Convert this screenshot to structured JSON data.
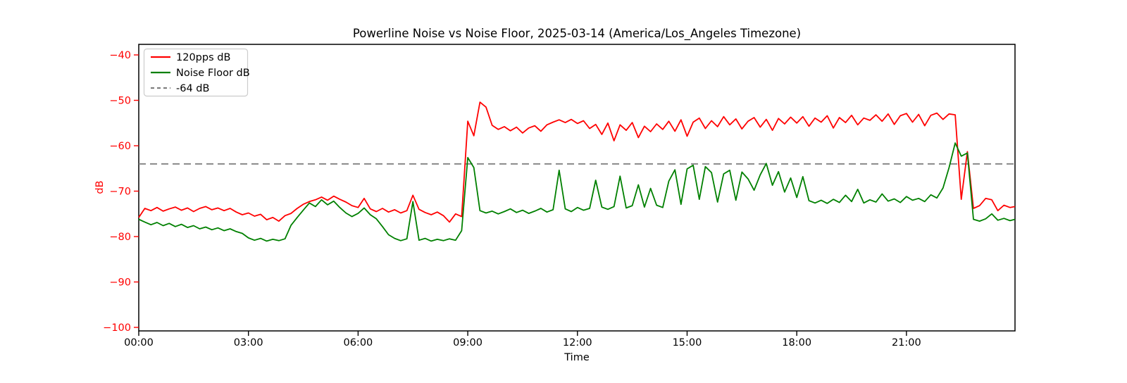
{
  "chart_data": {
    "type": "line",
    "title": "Powerline Noise vs Noise Floor, 2025-03-14 (America/Los_Angeles Timezone)",
    "xlabel": "Time",
    "ylabel": "dB",
    "y_axis_color": "#ff0000",
    "x_axis_color": "#000000",
    "ylim": [
      -100,
      -40
    ],
    "xlim_hours": [
      0,
      23.97
    ],
    "grid": false,
    "legend_position": "upper-left",
    "yticks": [
      {
        "value": -40,
        "label": "−40"
      },
      {
        "value": -50,
        "label": "−50"
      },
      {
        "value": -60,
        "label": "−60"
      },
      {
        "value": -70,
        "label": "−70"
      },
      {
        "value": -80,
        "label": "−80"
      },
      {
        "value": -90,
        "label": "−90"
      },
      {
        "value": -100,
        "label": "−100"
      }
    ],
    "xticks": [
      {
        "hour": 0,
        "label": "00:00"
      },
      {
        "hour": 3,
        "label": "03:00"
      },
      {
        "hour": 6,
        "label": "06:00"
      },
      {
        "hour": 9,
        "label": "09:00"
      },
      {
        "hour": 12,
        "label": "12:00"
      },
      {
        "hour": 15,
        "label": "15:00"
      },
      {
        "hour": 18,
        "label": "18:00"
      },
      {
        "hour": 21,
        "label": "21:00"
      }
    ],
    "threshold": {
      "value": -64,
      "label": "-64 dB",
      "color": "#808080",
      "style": "dashed"
    },
    "x_step_minutes": 10,
    "series": [
      {
        "name": "120pps dB",
        "color": "#ff0000",
        "style": "solid",
        "values": [
          -75.8,
          -73.8,
          -74.3,
          -73.6,
          -74.4,
          -73.9,
          -73.5,
          -74.2,
          -73.7,
          -74.5,
          -73.8,
          -73.4,
          -74.1,
          -73.7,
          -74.3,
          -73.8,
          -74.6,
          -75.2,
          -74.8,
          -75.5,
          -75.1,
          -76.3,
          -75.8,
          -76.6,
          -75.4,
          -74.9,
          -73.8,
          -72.9,
          -72.3,
          -71.9,
          -71.3,
          -72.0,
          -71.1,
          -71.8,
          -72.4,
          -73.2,
          -73.6,
          -71.6,
          -73.9,
          -74.5,
          -73.8,
          -74.6,
          -74.1,
          -74.8,
          -74.3,
          -70.9,
          -74.0,
          -74.7,
          -75.2,
          -74.6,
          -75.4,
          -76.8,
          -75.0,
          -75.6,
          -54.6,
          -57.8,
          -50.4,
          -51.5,
          -55.5,
          -56.4,
          -55.8,
          -56.7,
          -55.9,
          -57.2,
          -56.1,
          -55.6,
          -56.8,
          -55.4,
          -54.8,
          -54.3,
          -54.9,
          -54.2,
          -55.1,
          -54.5,
          -56.2,
          -55.3,
          -57.5,
          -55.0,
          -58.9,
          -55.4,
          -56.6,
          -54.9,
          -58.2,
          -55.7,
          -56.9,
          -55.2,
          -56.4,
          -54.6,
          -56.8,
          -54.3,
          -57.9,
          -54.8,
          -53.9,
          -56.2,
          -54.5,
          -55.8,
          -53.6,
          -55.4,
          -54.1,
          -56.3,
          -54.6,
          -53.8,
          -55.9,
          -54.2,
          -56.6,
          -54.0,
          -55.2,
          -53.7,
          -55.0,
          -53.6,
          -55.7,
          -53.9,
          -54.8,
          -53.4,
          -56.1,
          -53.8,
          -54.9,
          -53.3,
          -55.4,
          -53.9,
          -54.4,
          -53.2,
          -54.6,
          -53.0,
          -55.3,
          -53.4,
          -52.9,
          -54.8,
          -53.1,
          -55.6,
          -53.3,
          -52.8,
          -54.2,
          -53.0,
          -53.2,
          -71.8,
          -61.3,
          -73.8,
          -73.2,
          -71.6,
          -71.9,
          -74.3,
          -73.1,
          -73.6,
          -73.4
        ]
      },
      {
        "name": "Noise Floor dB",
        "color": "#008000",
        "style": "solid",
        "values": [
          -76.2,
          -76.8,
          -77.4,
          -76.9,
          -77.6,
          -77.1,
          -77.8,
          -77.3,
          -78.0,
          -77.6,
          -78.3,
          -77.9,
          -78.5,
          -78.1,
          -78.7,
          -78.3,
          -78.9,
          -79.3,
          -80.3,
          -80.8,
          -80.4,
          -81.0,
          -80.6,
          -80.9,
          -80.5,
          -77.5,
          -75.8,
          -74.2,
          -72.6,
          -73.4,
          -71.9,
          -73.0,
          -72.2,
          -73.6,
          -74.8,
          -75.6,
          -74.9,
          -73.7,
          -75.2,
          -76.1,
          -77.8,
          -79.6,
          -80.4,
          -80.9,
          -80.5,
          -72.3,
          -80.8,
          -80.4,
          -81.0,
          -80.6,
          -80.9,
          -80.5,
          -80.8,
          -78.7,
          -62.6,
          -64.8,
          -74.3,
          -74.8,
          -74.4,
          -75.0,
          -74.5,
          -73.9,
          -74.7,
          -74.2,
          -74.9,
          -74.4,
          -73.8,
          -74.6,
          -74.1,
          -65.4,
          -73.9,
          -74.5,
          -73.6,
          -74.2,
          -73.8,
          -67.6,
          -73.5,
          -74.0,
          -73.4,
          -66.7,
          -73.7,
          -73.2,
          -68.6,
          -73.5,
          -69.4,
          -73.1,
          -73.6,
          -67.8,
          -65.3,
          -72.9,
          -65.1,
          -64.3,
          -71.8,
          -64.6,
          -65.9,
          -72.4,
          -66.2,
          -65.4,
          -72.0,
          -65.8,
          -67.3,
          -69.8,
          -66.4,
          -63.9,
          -68.7,
          -65.7,
          -70.2,
          -67.1,
          -71.4,
          -66.8,
          -72.1,
          -72.6,
          -72.0,
          -72.7,
          -71.8,
          -72.5,
          -70.9,
          -72.3,
          -69.6,
          -72.6,
          -71.9,
          -72.4,
          -70.6,
          -72.2,
          -71.7,
          -72.5,
          -71.2,
          -72.0,
          -71.6,
          -72.3,
          -70.8,
          -71.5,
          -69.3,
          -64.8,
          -59.4,
          -62.3,
          -61.6,
          -76.2,
          -76.6,
          -76.1,
          -75.0,
          -76.4,
          -76.0,
          -76.5,
          -76.2
        ]
      }
    ]
  }
}
